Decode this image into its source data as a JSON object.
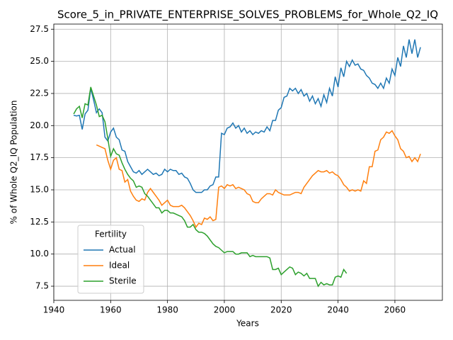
{
  "chart_data": {
    "type": "line",
    "title": "Score_5_in_PRIVATE_ENTERPRISE_SOLVES_PROBLEMS_for_Whole_Q2_IQ",
    "xlabel": "Years",
    "ylabel": "% of Whole Q2_IQ Population",
    "x": [
      1947,
      1948,
      1949,
      1950,
      1951,
      1952,
      1953,
      1954,
      1955,
      1956,
      1957,
      1958,
      1959,
      1960,
      1961,
      1962,
      1963,
      1964,
      1965,
      1966,
      1967,
      1968,
      1969,
      1970,
      1971,
      1972,
      1973,
      1974,
      1975,
      1976,
      1977,
      1978,
      1979,
      1980,
      1981,
      1982,
      1983,
      1984,
      1985,
      1986,
      1987,
      1988,
      1989,
      1990,
      1991,
      1992,
      1993,
      1994,
      1995,
      1996,
      1997,
      1998,
      1999,
      2000,
      2001,
      2002,
      2003,
      2004,
      2005,
      2006,
      2007,
      2008,
      2009,
      2010,
      2011,
      2012,
      2013,
      2014,
      2015,
      2016,
      2017,
      2018,
      2019,
      2020,
      2021,
      2022,
      2023,
      2024,
      2025,
      2026,
      2027,
      2028,
      2029,
      2030,
      2031,
      2032,
      2033,
      2034,
      2035,
      2036,
      2037,
      2038,
      2039,
      2040,
      2041,
      2042,
      2043,
      2044,
      2045,
      2046,
      2047,
      2048,
      2049,
      2050,
      2051,
      2052,
      2053,
      2054,
      2055,
      2056,
      2057,
      2058,
      2059,
      2060,
      2061,
      2062,
      2063,
      2064,
      2065,
      2066,
      2067,
      2068,
      2069
    ],
    "series": [
      {
        "name": "Actual",
        "color": "#1f77b4",
        "values": [
          20.8,
          20.75,
          20.8,
          19.7,
          20.9,
          21.2,
          22.9,
          22.0,
          21.0,
          21.3,
          21.0,
          19.1,
          18.8,
          19.5,
          19.8,
          19.1,
          18.9,
          18.1,
          18.0,
          17.2,
          16.8,
          16.4,
          16.3,
          16.5,
          16.2,
          16.4,
          16.6,
          16.4,
          16.2,
          16.3,
          16.1,
          16.2,
          16.6,
          16.4,
          16.6,
          16.5,
          16.5,
          16.2,
          16.3,
          16.0,
          15.9,
          15.5,
          15.0,
          14.8,
          14.8,
          14.8,
          15.0,
          15.0,
          15.3,
          15.4,
          16.0,
          16.0,
          19.4,
          19.3,
          19.8,
          19.9,
          20.2,
          19.8,
          20.0,
          19.5,
          19.8,
          19.4,
          19.6,
          19.3,
          19.5,
          19.4,
          19.6,
          19.5,
          19.9,
          19.6,
          20.4,
          20.4,
          21.2,
          21.4,
          22.2,
          22.3,
          22.9,
          22.7,
          22.9,
          22.5,
          22.8,
          22.3,
          22.5,
          21.9,
          22.3,
          21.7,
          22.1,
          21.5,
          22.4,
          21.8,
          22.9,
          22.3,
          23.8,
          23.0,
          24.5,
          23.8,
          25.0,
          24.6,
          25.1,
          24.7,
          24.8,
          24.4,
          24.3,
          23.9,
          23.7,
          23.3,
          23.2,
          22.9,
          23.3,
          22.9,
          23.7,
          23.3,
          24.4,
          23.9,
          25.3,
          24.6,
          26.2,
          25.3,
          26.7,
          25.6,
          26.7,
          25.3,
          26.1
        ]
      },
      {
        "name": "Ideal",
        "color": "#ff7f0e",
        "values": [
          null,
          null,
          null,
          null,
          null,
          null,
          null,
          null,
          18.5,
          18.4,
          18.3,
          18.2,
          17.3,
          16.6,
          17.3,
          17.5,
          16.6,
          16.5,
          15.6,
          15.8,
          14.9,
          14.5,
          14.2,
          14.1,
          14.3,
          14.2,
          14.8,
          15.1,
          14.8,
          14.5,
          14.2,
          13.8,
          14.0,
          14.2,
          13.8,
          13.7,
          13.7,
          13.7,
          13.8,
          13.6,
          13.3,
          13.0,
          12.6,
          12.1,
          12.4,
          12.3,
          12.8,
          12.7,
          12.9,
          12.6,
          12.7,
          15.2,
          15.3,
          15.1,
          15.4,
          15.3,
          15.4,
          15.1,
          15.2,
          15.1,
          15.0,
          14.7,
          14.6,
          14.1,
          14.0,
          14.0,
          14.3,
          14.5,
          14.7,
          14.7,
          14.6,
          15.0,
          14.8,
          14.7,
          14.6,
          14.6,
          14.6,
          14.7,
          14.8,
          14.8,
          14.7,
          15.2,
          15.5,
          15.8,
          16.1,
          16.3,
          16.5,
          16.4,
          16.4,
          16.5,
          16.3,
          16.4,
          16.2,
          16.1,
          15.8,
          15.4,
          15.2,
          14.9,
          15.0,
          14.9,
          15.0,
          14.9,
          15.7,
          15.5,
          16.8,
          16.8,
          18.0,
          18.1,
          18.9,
          19.1,
          19.5,
          19.4,
          19.6,
          19.2,
          18.9,
          18.2,
          18.0,
          17.5,
          17.6,
          17.2,
          17.5,
          17.2,
          17.8
        ]
      },
      {
        "name": "Sterile",
        "color": "#2ca02c",
        "values": [
          20.9,
          21.3,
          21.5,
          20.6,
          21.7,
          21.6,
          23.0,
          22.3,
          21.6,
          20.7,
          20.8,
          20.3,
          19.0,
          17.6,
          18.2,
          17.8,
          17.7,
          17.1,
          16.6,
          16.2,
          15.9,
          15.7,
          15.2,
          15.3,
          15.2,
          14.7,
          14.5,
          14.2,
          13.9,
          13.6,
          13.6,
          13.2,
          13.4,
          13.4,
          13.2,
          13.2,
          13.1,
          13.0,
          12.9,
          12.6,
          12.1,
          12.1,
          12.3,
          11.9,
          11.7,
          11.7,
          11.6,
          11.4,
          11.1,
          10.8,
          10.6,
          10.5,
          10.3,
          10.1,
          10.2,
          10.2,
          10.2,
          10.0,
          10.0,
          10.1,
          10.1,
          10.1,
          9.8,
          9.9,
          9.8,
          9.8,
          9.8,
          9.8,
          9.8,
          9.7,
          8.8,
          8.8,
          8.9,
          8.4,
          8.6,
          8.8,
          9.0,
          8.9,
          8.4,
          8.6,
          8.5,
          8.3,
          8.5,
          8.1,
          8.1,
          8.1,
          7.5,
          7.8,
          7.6,
          7.7,
          7.6,
          7.6,
          8.2,
          8.3,
          8.2,
          8.8,
          8.5,
          null,
          null,
          null,
          null,
          null,
          null,
          null,
          null,
          null,
          null,
          null,
          null,
          null,
          null,
          null,
          null,
          null,
          null,
          null,
          null,
          null,
          null,
          null,
          null,
          null,
          null
        ]
      }
    ],
    "xlim": [
      1940,
      2076.7
    ],
    "xticks": [
      1940,
      1960,
      1980,
      2000,
      2020,
      2040,
      2060
    ],
    "ylim": [
      6.4,
      27.9
    ],
    "yticks": [
      7.5,
      {
        "value": 10,
        "label": "10.0"
      },
      12.5,
      {
        "value": 15,
        "label": "15.0"
      },
      17.5,
      {
        "value": 20,
        "label": "20.0"
      },
      22.5,
      {
        "value": 25,
        "label": "25.0"
      },
      27.5
    ],
    "grid": true,
    "legend_title": "Fertility",
    "legend": "lower left"
  }
}
